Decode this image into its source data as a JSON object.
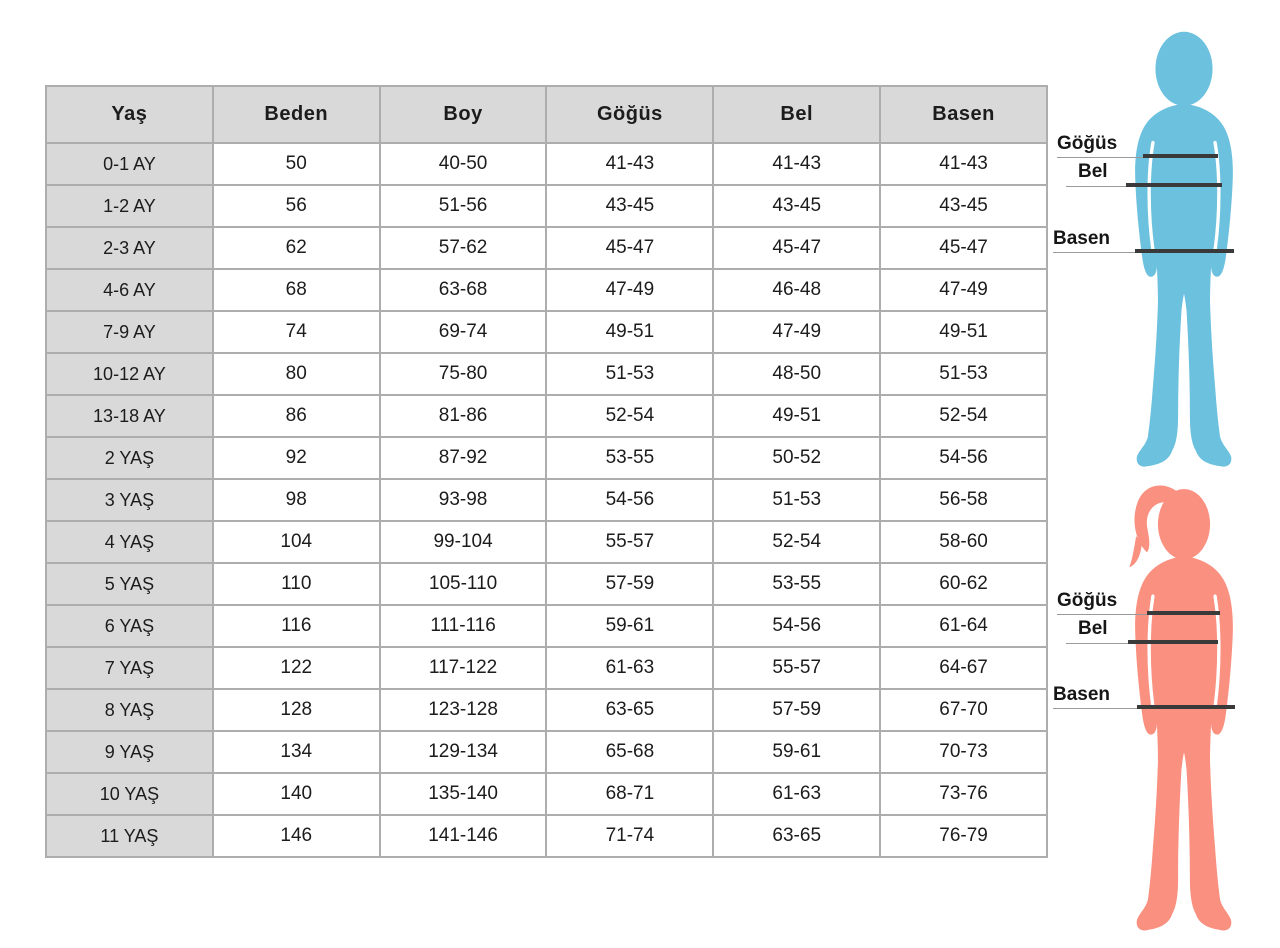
{
  "chart_data": {
    "type": "table",
    "columns": [
      "Yaş",
      "Beden",
      "Boy",
      "Göğüs",
      "Bel",
      "Basen"
    ],
    "rows": [
      [
        "0-1 AY",
        "50",
        "40-50",
        "41-43",
        "41-43",
        "41-43"
      ],
      [
        "1-2 AY",
        "56",
        "51-56",
        "43-45",
        "43-45",
        "43-45"
      ],
      [
        "2-3 AY",
        "62",
        "57-62",
        "45-47",
        "45-47",
        "45-47"
      ],
      [
        "4-6 AY",
        "68",
        "63-68",
        "47-49",
        "46-48",
        "47-49"
      ],
      [
        "7-9 AY",
        "74",
        "69-74",
        "49-51",
        "47-49",
        "49-51"
      ],
      [
        "10-12 AY",
        "80",
        "75-80",
        "51-53",
        "48-50",
        "51-53"
      ],
      [
        "13-18 AY",
        "86",
        "81-86",
        "52-54",
        "49-51",
        "52-54"
      ],
      [
        "2 YAŞ",
        "92",
        "87-92",
        "53-55",
        "50-52",
        "54-56"
      ],
      [
        "3 YAŞ",
        "98",
        "93-98",
        "54-56",
        "51-53",
        "56-58"
      ],
      [
        "4 YAŞ",
        "104",
        "99-104",
        "55-57",
        "52-54",
        "58-60"
      ],
      [
        "5 YAŞ",
        "110",
        "105-110",
        "57-59",
        "53-55",
        "60-62"
      ],
      [
        "6 YAŞ",
        "116",
        "111-116",
        "59-61",
        "54-56",
        "61-64"
      ],
      [
        "7 YAŞ",
        "122",
        "117-122",
        "61-63",
        "55-57",
        "64-67"
      ],
      [
        "8 YAŞ",
        "128",
        "123-128",
        "63-65",
        "57-59",
        "67-70"
      ],
      [
        "9 YAŞ",
        "134",
        "129-134",
        "65-68",
        "59-61",
        "70-73"
      ],
      [
        "10 YAŞ",
        "140",
        "135-140",
        "68-71",
        "61-63",
        "73-76"
      ],
      [
        "11 YAŞ",
        "146",
        "141-146",
        "71-74",
        "63-65",
        "76-79"
      ]
    ]
  },
  "figures": {
    "top": {
      "color": "#6bc1de",
      "measures": {
        "chest": "Göğüs",
        "waist": "Bel",
        "hip": "Basen"
      }
    },
    "bottom": {
      "color": "#fa907f",
      "measures": {
        "chest": "Göğüs",
        "waist": "Bel",
        "hip": "Basen"
      }
    }
  },
  "colors": {
    "header_bg": "#d9d9d9",
    "label_column_bg": "#d9d9d9",
    "cell_bg": "#ffffff",
    "table_border": "#adadad",
    "text": "#1c1c1c",
    "measure_line_dark": "#3a3a3a",
    "measure_line_thin": "#9a9a9a"
  }
}
